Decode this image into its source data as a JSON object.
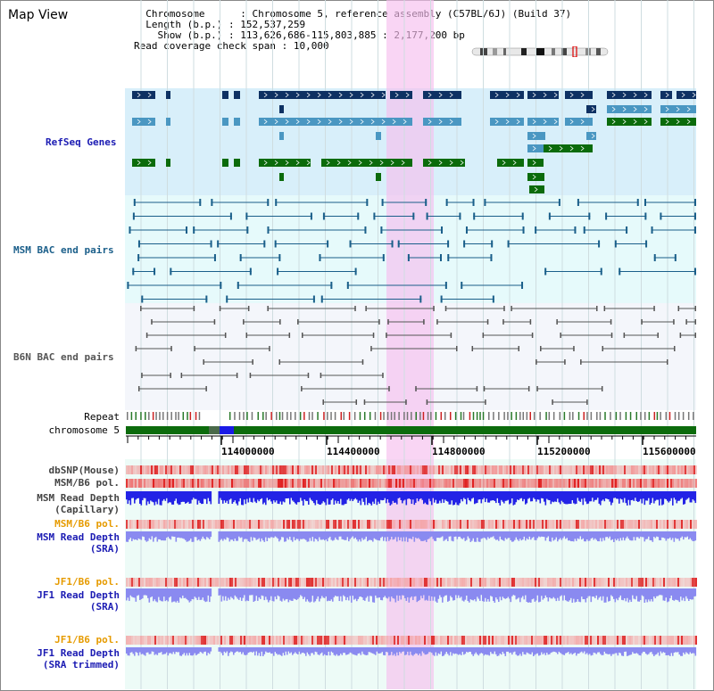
{
  "window": {
    "title": "Map View"
  },
  "info": {
    "chromosome_label": "Chromosome",
    "chromosome_value": "Chromosome 5, reference assembly (C57BL/6J) (Build 37)",
    "length_label": "Length (b.p.)",
    "length_value": "152,537,259",
    "show_label": "Show (b.p.)",
    "show_value": "113,626,686-115,803,885 : 2,177,200 bp",
    "coverage_label": "Read coverage check span",
    "coverage_value": "10,000"
  },
  "tracks": {
    "refseq": "RefSeq Genes",
    "msm_bac": "MSM BAC end pairs",
    "b6n_bac": "B6N BAC end pairs",
    "repeat": "Repeat",
    "chromosome": "chromosome 5",
    "dbsnp": "dbSNP(Mouse)",
    "msm_b6_pol_1": "MSM/B6 pol.",
    "msm_read_depth_cap_1": "MSM Read Depth",
    "msm_read_depth_cap_2": "(Capillary)",
    "msm_b6_pol_2": "MSM/B6 pol.",
    "msm_read_depth_sra_1": "MSM Read Depth",
    "msm_read_depth_sra_2": "(SRA)",
    "jf1_b6_pol_1": "JF1/B6 pol.",
    "jf1_read_depth_sra_1": "JF1 Read Depth",
    "jf1_read_depth_sra_2": "(SRA)",
    "jf1_b6_pol_2": "JF1/B6 pol.",
    "jf1_read_depth_trim_1": "JF1 Read Depth",
    "jf1_read_depth_trim_2": "(SRA trimmed)"
  },
  "axis": {
    "ticks": [
      "114000000",
      "114400000",
      "114800000",
      "115200000",
      "115600000"
    ]
  },
  "colors": {
    "refseq_bg": "#d8effa",
    "bac_bg": "#e6fafb",
    "b6n_bg": "#f4f6fb",
    "highlight": "#f7cdf1",
    "gene_dark": "#0e3163",
    "gene_mid": "#4a97c2",
    "gene_green": "#0b6b0b",
    "bac_line": "#1a5f8a",
    "b6n_line": "#555555",
    "chromosome_green": "#0c6b0c",
    "depth_blue": "#2323e6",
    "depth_light": "#8a8af0",
    "label_blue": "#1b1bb3",
    "label_orange": "#e69b00"
  }
}
